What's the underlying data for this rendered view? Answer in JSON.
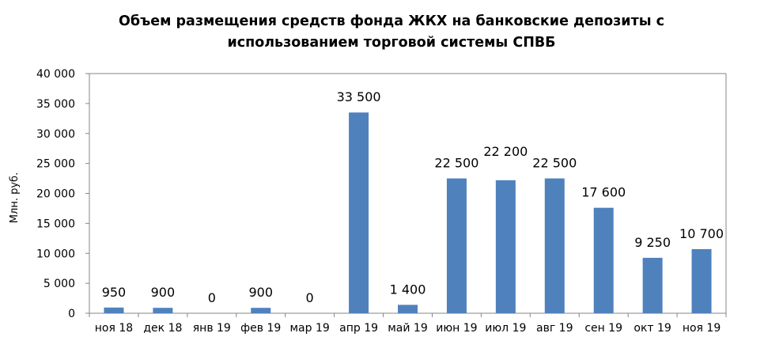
{
  "chart_data": {
    "type": "bar",
    "title_lines": [
      "Объем размещения средств фонда ЖКХ на банковские депозиты с",
      "использованием торговой  системы СПВБ"
    ],
    "xlabel": "",
    "ylabel": "Млн. руб.",
    "ylim": [
      0,
      40000
    ],
    "yticks": [
      "0",
      "5 000",
      "10 000",
      "15 000",
      "20 000",
      "25 000",
      "30 000",
      "35 000",
      "40 000"
    ],
    "categories": [
      "ноя 18",
      "дек 18",
      "янв 19",
      "фев 19",
      "мар 19",
      "апр 19",
      "май 19",
      "июн 19",
      "июл 19",
      "авг 19",
      "сен 19",
      "окт 19",
      "ноя 19"
    ],
    "values": [
      950,
      900,
      0,
      900,
      0,
      33500,
      1400,
      22500,
      22200,
      22500,
      17600,
      9250,
      10700
    ],
    "data_labels": [
      "950",
      "900",
      "0",
      "900",
      "0",
      "33 500",
      "1 400",
      "22 500",
      "22 200",
      "22 500",
      "17 600",
      "9 250",
      "10 700"
    ],
    "grid": false,
    "legend": "none",
    "bar_color": "#4f81bd",
    "axis_color": "#868686"
  }
}
